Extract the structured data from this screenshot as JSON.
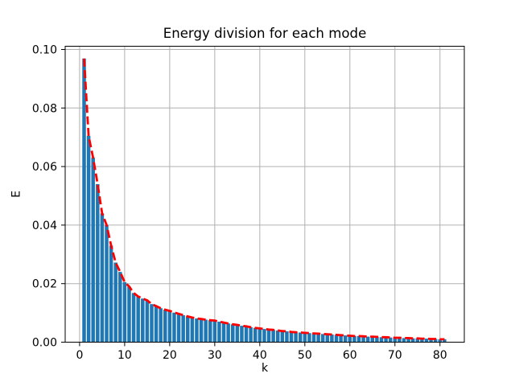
{
  "figure": {
    "background": "#ffffff"
  },
  "chart_data": {
    "type": "bar",
    "title": "Energy division for each mode",
    "xlabel": "k",
    "ylabel": "E",
    "grid": true,
    "grid_color": "#b0b0b0",
    "spine_color": "#000000",
    "legend": "none",
    "xlim": [
      -3.2,
      85.4
    ],
    "ylim": [
      0,
      0.1011
    ],
    "xticks": [
      0,
      10,
      20,
      30,
      40,
      50,
      60,
      70,
      80
    ],
    "yticks": [
      0,
      0.02,
      0.04,
      0.06,
      0.08,
      0.1
    ],
    "x": [
      1,
      2,
      3,
      4,
      5,
      6,
      7,
      8,
      9,
      10,
      11,
      12,
      13,
      14,
      15,
      16,
      17,
      18,
      19,
      20,
      21,
      22,
      23,
      24,
      25,
      26,
      27,
      28,
      29,
      30,
      31,
      32,
      33,
      34,
      35,
      36,
      37,
      38,
      39,
      40,
      41,
      42,
      43,
      44,
      45,
      46,
      47,
      48,
      49,
      50,
      51,
      52,
      53,
      54,
      55,
      56,
      57,
      58,
      59,
      60,
      61,
      62,
      63,
      64,
      65,
      66,
      67,
      68,
      69,
      70,
      71,
      72,
      73,
      74,
      75,
      76,
      77,
      78,
      79,
      80,
      81
    ],
    "series": [
      {
        "name": "mode-energy-bars",
        "type": "bar",
        "color": "#1f77b4",
        "bar_width_units": 0.8,
        "values": [
          0.0969,
          0.0705,
          0.063,
          0.054,
          0.044,
          0.04,
          0.033,
          0.0272,
          0.024,
          0.0205,
          0.019,
          0.0168,
          0.0156,
          0.0149,
          0.0143,
          0.013,
          0.0123,
          0.0116,
          0.0111,
          0.0107,
          0.0101,
          0.0097,
          0.0092,
          0.0088,
          0.0084,
          0.0081,
          0.0079,
          0.0077,
          0.0075,
          0.0074,
          0.007,
          0.0067,
          0.0064,
          0.0061,
          0.0059,
          0.0056,
          0.0054,
          0.0051,
          0.0049,
          0.0047,
          0.0045,
          0.0043,
          0.0042,
          0.004,
          0.0038,
          0.0037,
          0.0035,
          0.0034,
          0.0033,
          0.0032,
          0.0031,
          0.003,
          0.0029,
          0.0028,
          0.0027,
          0.0026,
          0.0025,
          0.0024,
          0.0023,
          0.0022,
          0.0021,
          0.0021,
          0.002,
          0.0019,
          0.0019,
          0.0018,
          0.0017,
          0.0017,
          0.0016,
          0.0015,
          0.0015,
          0.0014,
          0.0014,
          0.0013,
          0.0013,
          0.0012,
          0.0012,
          0.0011,
          0.0011,
          0.001,
          0.001
        ]
      },
      {
        "name": "energy-envelope-line",
        "type": "line",
        "color": "#ff0000",
        "style": "dashed",
        "line_width": 2.8,
        "values": [
          0.0969,
          0.0705,
          0.063,
          0.054,
          0.044,
          0.04,
          0.033,
          0.0272,
          0.024,
          0.0205,
          0.019,
          0.0168,
          0.0156,
          0.0149,
          0.0143,
          0.013,
          0.0123,
          0.0116,
          0.0111,
          0.0107,
          0.0101,
          0.0097,
          0.0092,
          0.0088,
          0.0084,
          0.0081,
          0.0079,
          0.0077,
          0.0075,
          0.0074,
          0.007,
          0.0067,
          0.0064,
          0.0061,
          0.0059,
          0.0056,
          0.0054,
          0.0051,
          0.0049,
          0.0047,
          0.0045,
          0.0043,
          0.0042,
          0.004,
          0.0038,
          0.0037,
          0.0035,
          0.0034,
          0.0033,
          0.0032,
          0.0031,
          0.003,
          0.0029,
          0.0028,
          0.0027,
          0.0026,
          0.0025,
          0.0024,
          0.0023,
          0.0022,
          0.0021,
          0.0021,
          0.002,
          0.0019,
          0.0019,
          0.0018,
          0.0017,
          0.0017,
          0.0016,
          0.0015,
          0.0015,
          0.0014,
          0.0014,
          0.0013,
          0.0013,
          0.0012,
          0.0012,
          0.0011,
          0.0011,
          0.001,
          0.001
        ]
      }
    ]
  }
}
